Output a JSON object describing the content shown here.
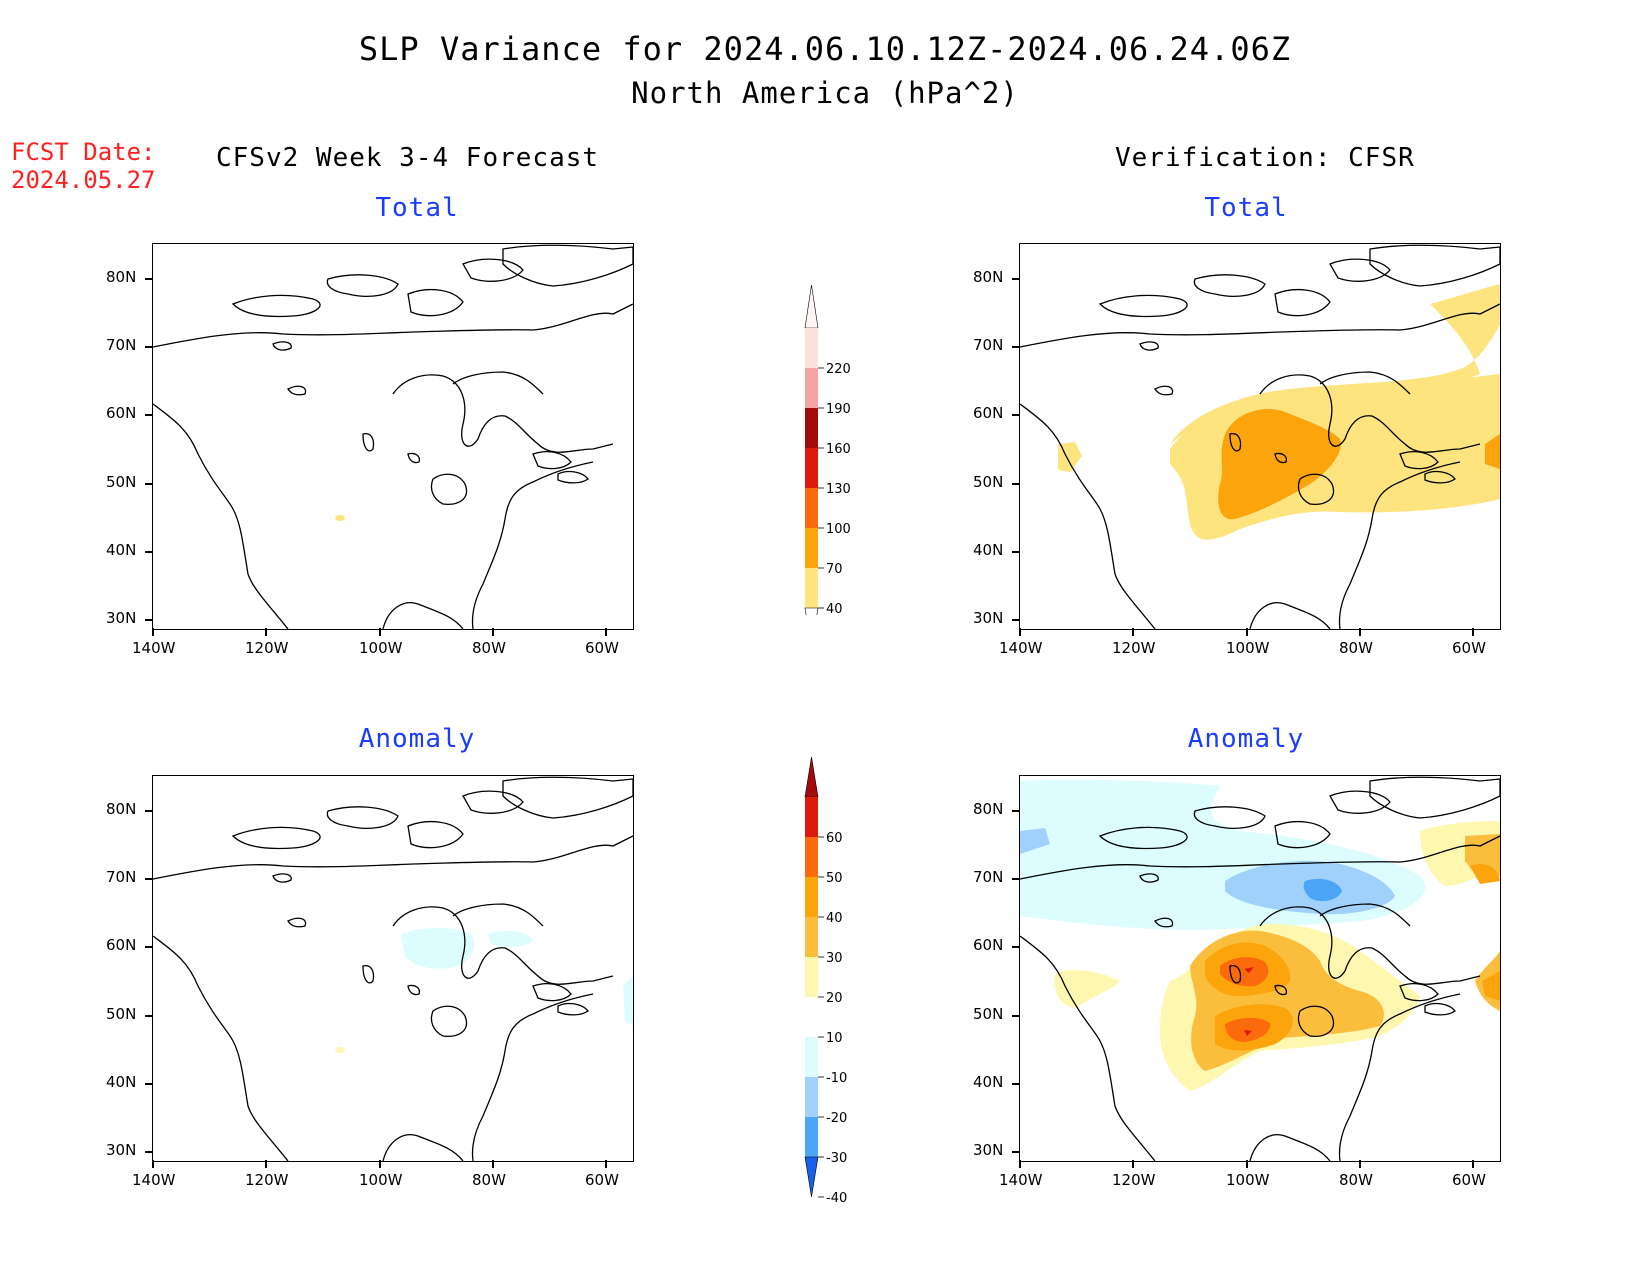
{
  "title_line1": "SLP Variance for 2024.06.10.12Z-2024.06.24.06Z",
  "title_line2": "North America (hPa^2)",
  "fcst_label": "FCST Date:",
  "fcst_date": "2024.05.27",
  "left_column_title": "CFSv2 Week 3-4 Forecast",
  "right_column_title": "Verification: CFSR",
  "panels": {
    "fcst_total": {
      "title": "Total"
    },
    "fcst_anom": {
      "title": "Anomaly"
    },
    "ver_total": {
      "title": "Total"
    },
    "ver_anom": {
      "title": "Anomaly"
    }
  },
  "lat_labels": [
    "80N",
    "70N",
    "60N",
    "50N",
    "40N",
    "30N"
  ],
  "lon_labels": [
    "140W",
    "120W",
    "100W",
    "80W",
    "60W"
  ],
  "total_colorbar": {
    "labels": [
      "220",
      "190",
      "160",
      "130",
      "100",
      "70",
      "40"
    ],
    "colors": [
      "#fde0dc",
      "#f4a5a3",
      "#a30b0b",
      "#dc1a0b",
      "#fb6a0c",
      "#fba40c",
      "#fde47e"
    ]
  },
  "anomaly_colorbar": {
    "labels": [
      "60",
      "50",
      "40",
      "30",
      "20",
      "10",
      "-10",
      "-20",
      "-30",
      "-40"
    ],
    "colors": [
      "#a30b0b",
      "#dc1a0b",
      "#fb6a0c",
      "#fba40c",
      "#fbbe3c",
      "#fef7b0",
      "#ffffff",
      "#dcfcfe",
      "#9fd1fb",
      "#4ba4f6",
      "#1660ea"
    ]
  },
  "colors": {
    "title_red": "#ff2020",
    "title_blue": "#1a3cff"
  }
}
